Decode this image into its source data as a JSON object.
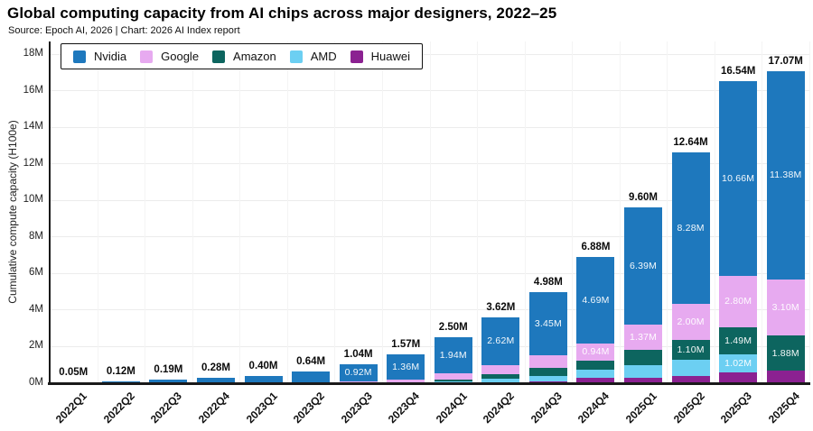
{
  "header": {
    "title": "Global computing capacity from AI chips across major designers, 2022–25",
    "subtitle": "Source: Epoch AI, 2026 | Chart: 2026 AI Index report"
  },
  "chart_data": {
    "type": "bar",
    "stacked": true,
    "title": "Global computing capacity from AI chips across major designers, 2022–25",
    "xlabel": "",
    "ylabel": "Cumulative compute capacity (H100e)",
    "ylim": [
      0,
      18
    ],
    "ytick_step": 2,
    "ytick_suffix": "M",
    "grid": true,
    "legend_position": "top-left-inside",
    "legend": [
      {
        "key": "nvidia",
        "name": "Nvidia",
        "color": "#1e78bd"
      },
      {
        "key": "google",
        "name": "Google",
        "color": "#e7aaf0"
      },
      {
        "key": "amazon",
        "name": "Amazon",
        "color": "#0d655f"
      },
      {
        "key": "amd",
        "name": "AMD",
        "color": "#6ccff2"
      },
      {
        "key": "huawei",
        "name": "Huawei",
        "color": "#8b2191"
      }
    ],
    "stack_order_bottom_to_top": [
      "huawei",
      "amd",
      "amazon",
      "google",
      "nvidia"
    ],
    "categories": [
      "2022Q1",
      "2022Q2",
      "2022Q3",
      "2022Q4",
      "2023Q1",
      "2023Q2",
      "2023Q3",
      "2023Q4",
      "2024Q1",
      "2024Q2",
      "2024Q3",
      "2024Q4",
      "2025Q1",
      "2025Q2",
      "2025Q3",
      "2025Q4"
    ],
    "totals_labels": [
      "0.05M",
      "0.12M",
      "0.19M",
      "0.28M",
      "0.40M",
      "0.64M",
      "1.04M",
      "1.57M",
      "2.50M",
      "3.62M",
      "4.98M",
      "6.88M",
      "9.60M",
      "12.64M",
      "16.54M",
      "17.07M"
    ],
    "series": [
      {
        "key": "nvidia",
        "name": "Nvidia",
        "color": "#1e78bd",
        "values": [
          0.05,
          0.12,
          0.19,
          0.28,
          0.39,
          0.61,
          0.92,
          1.36,
          1.94,
          2.62,
          3.45,
          4.69,
          6.39,
          8.28,
          10.66,
          11.38
        ],
        "labels": [
          null,
          null,
          null,
          null,
          null,
          null,
          "0.92M",
          "1.36M",
          "1.94M",
          "2.62M",
          "3.45M",
          "4.69M",
          "6.39M",
          "8.28M",
          "10.66M",
          "11.38M"
        ]
      },
      {
        "key": "google",
        "name": "Google",
        "color": "#e7aaf0",
        "values": [
          0,
          0,
          0,
          0,
          0.01,
          0.03,
          0.1,
          0.14,
          0.36,
          0.52,
          0.7,
          0.94,
          1.37,
          2.0,
          2.8,
          3.1
        ],
        "labels": [
          null,
          null,
          null,
          null,
          null,
          null,
          null,
          null,
          null,
          null,
          null,
          "0.94M",
          "1.37M",
          "2.00M",
          "2.80M",
          "3.10M"
        ]
      },
      {
        "key": "amazon",
        "name": "Amazon",
        "color": "#0d655f",
        "values": [
          0,
          0,
          0,
          0,
          0,
          0,
          0.02,
          0.04,
          0.11,
          0.25,
          0.43,
          0.51,
          0.85,
          1.1,
          1.49,
          1.88
        ],
        "labels": [
          null,
          null,
          null,
          null,
          null,
          null,
          null,
          null,
          null,
          null,
          null,
          null,
          null,
          "1.10M",
          "1.49M",
          "1.88M"
        ]
      },
      {
        "key": "amd",
        "name": "AMD",
        "color": "#6ccff2",
        "values": [
          0,
          0,
          0,
          0,
          0,
          0,
          0,
          0.02,
          0.06,
          0.16,
          0.28,
          0.44,
          0.69,
          0.85,
          1.02,
          0
        ],
        "labels": [
          null,
          null,
          null,
          null,
          null,
          null,
          null,
          null,
          null,
          null,
          null,
          null,
          null,
          null,
          "1.02M",
          null
        ]
      },
      {
        "key": "huawei",
        "name": "Huawei",
        "color": "#8b2191",
        "values": [
          0,
          0,
          0,
          0,
          0,
          0,
          0,
          0.01,
          0.03,
          0.07,
          0.12,
          0.3,
          0.3,
          0.41,
          0.57,
          0.71
        ],
        "labels": [
          null,
          null,
          null,
          null,
          null,
          null,
          null,
          null,
          null,
          null,
          null,
          null,
          null,
          null,
          null,
          null
        ]
      }
    ],
    "colors": {
      "axis": "#1a1a1a",
      "grid_horizontal": "#ececec",
      "grid_vertical": "#f4f4f4",
      "total_label": "#0a0a0a",
      "segment_label": "#ffffff"
    }
  }
}
